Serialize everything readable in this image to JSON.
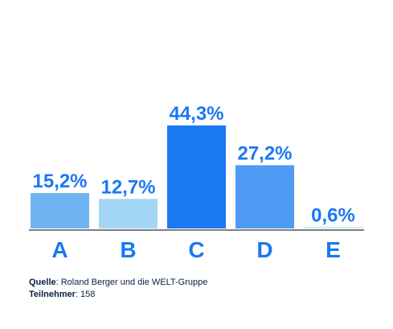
{
  "chart_data": {
    "type": "bar",
    "categories": [
      "A",
      "B",
      "C",
      "D",
      "E"
    ],
    "values": [
      15.2,
      12.7,
      44.3,
      27.2,
      0.6
    ],
    "value_labels": [
      "15,2%",
      "12,7%",
      "44,3%",
      "27,2%",
      "0,6%"
    ],
    "bar_colors": [
      "#6fb4f2",
      "#a3d6f5",
      "#1a78f2",
      "#4f9af3",
      "#cde9f8"
    ],
    "label_color": "#1a78f2",
    "axis_color": "#333333",
    "ylim": [
      0,
      50
    ],
    "grid": false,
    "legend": "none"
  },
  "source": {
    "label": "Quelle",
    "text": ": Roland Berger und die WELT-Gruppe"
  },
  "participants": {
    "label": "Teilnehmer",
    "text": ": 158"
  }
}
